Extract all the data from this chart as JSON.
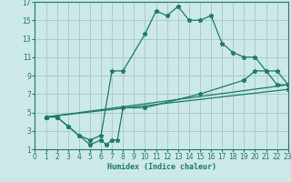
{
  "xlabel": "Humidex (Indice chaleur)",
  "xlim": [
    0,
    23
  ],
  "ylim": [
    1,
    17
  ],
  "xticks": [
    0,
    1,
    2,
    3,
    4,
    5,
    6,
    7,
    8,
    9,
    10,
    11,
    12,
    13,
    14,
    15,
    16,
    17,
    18,
    19,
    20,
    21,
    22,
    23
  ],
  "yticks": [
    1,
    3,
    5,
    7,
    9,
    11,
    13,
    15,
    17
  ],
  "bg_color": "#cce8e8",
  "grid_color": "#aacccc",
  "line_color": "#1a7a6a",
  "series": [
    {
      "x": [
        1,
        2,
        3,
        4,
        5,
        6,
        7,
        8,
        10,
        11,
        12,
        13,
        14,
        15,
        16,
        17,
        18,
        19,
        20,
        21,
        22,
        23
      ],
      "y": [
        4.5,
        4.5,
        3.5,
        2.5,
        2.0,
        2.5,
        9.5,
        9.5,
        13.5,
        16.0,
        15.5,
        16.5,
        15.0,
        15.0,
        15.5,
        12.5,
        11.5,
        11.0,
        11.0,
        9.5,
        8.0,
        8.0
      ]
    },
    {
      "x": [
        1,
        2,
        3,
        4,
        5,
        6,
        6.5,
        7,
        7.5,
        8,
        10,
        15,
        19,
        20,
        21,
        22,
        23
      ],
      "y": [
        4.5,
        4.5,
        3.5,
        2.5,
        1.5,
        2.0,
        1.5,
        2.0,
        2.0,
        5.5,
        5.5,
        7.0,
        8.5,
        9.5,
        9.5,
        9.5,
        8.0
      ]
    },
    {
      "x": [
        1,
        23
      ],
      "y": [
        4.5,
        8.0
      ]
    },
    {
      "x": [
        1,
        23
      ],
      "y": [
        4.5,
        7.5
      ]
    }
  ]
}
